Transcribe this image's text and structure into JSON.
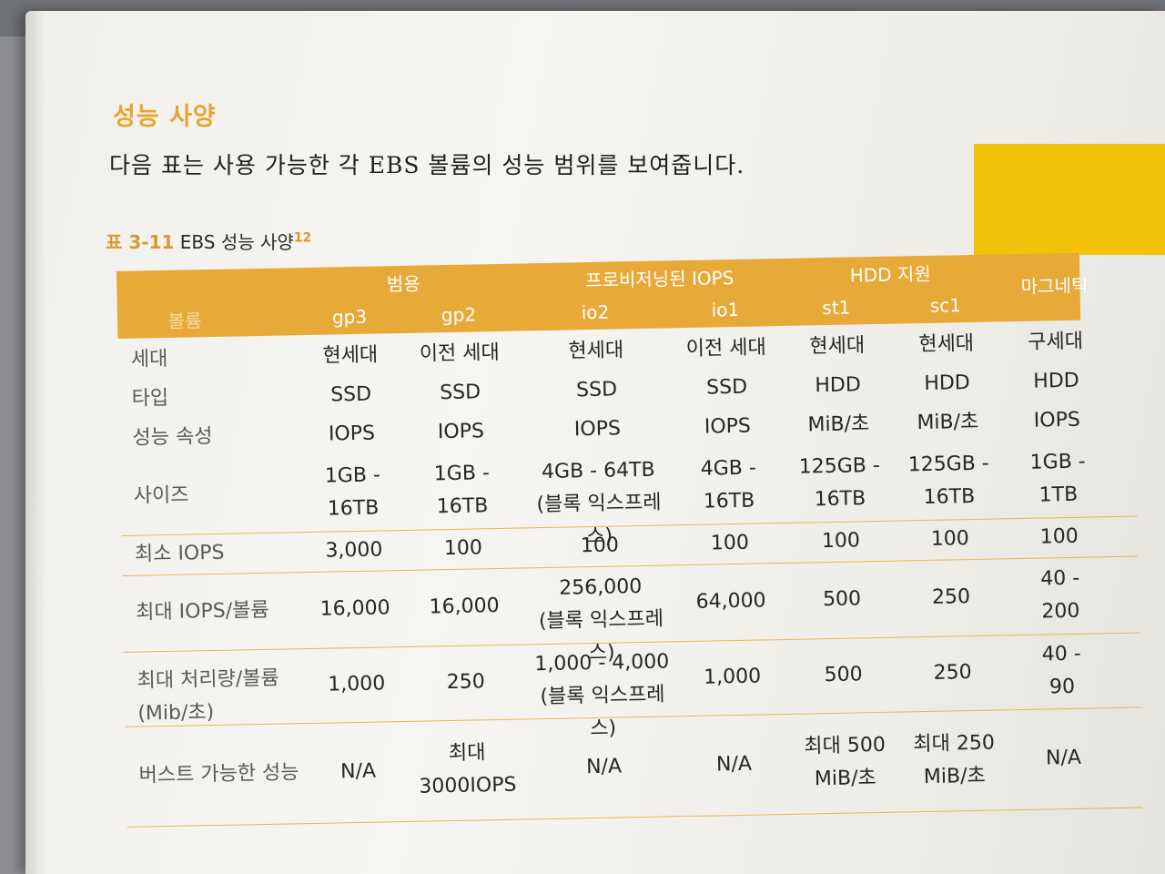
{
  "section_title": "성능 사양",
  "intro": "다음 표는 사용 가능한 각 EBS 볼륨의 성능 범위를 보여줍니다.",
  "caption": {
    "number": "표 3-11",
    "text": "EBS 성능 사양",
    "footnote": "12"
  },
  "table": {
    "groups": [
      "범용",
      "프로비저닝된 IOPS",
      "HDD 지원",
      "마그네틱"
    ],
    "row_header": "볼륨",
    "volumes": [
      "gp3",
      "gp2",
      "io2",
      "io1",
      "st1",
      "sc1"
    ],
    "rows": [
      {
        "label": "세대",
        "values": [
          "현세대",
          "이전 세대",
          "현세대",
          "이전 세대",
          "현세대",
          "현세대",
          "구세대"
        ]
      },
      {
        "label": "타입",
        "values": [
          "SSD",
          "SSD",
          "SSD",
          "SSD",
          "HDD",
          "HDD",
          "HDD"
        ]
      },
      {
        "label": "성능 속성",
        "values": [
          "IOPS",
          "IOPS",
          "IOPS",
          "IOPS",
          "MiB/초",
          "MiB/초",
          "IOPS"
        ]
      },
      {
        "label": "사이즈",
        "values": [
          [
            "1GB -",
            "16TB"
          ],
          [
            "1GB -",
            "16TB"
          ],
          [
            "4GB - 64TB",
            "(블록 익스프레스)"
          ],
          [
            "4GB -",
            "16TB"
          ],
          [
            "125GB -",
            "16TB"
          ],
          [
            "125GB -",
            "16TB"
          ],
          [
            "1GB -",
            "1TB"
          ]
        ]
      },
      {
        "label": "최소 IOPS",
        "values": [
          "3,000",
          "100",
          "100",
          "100",
          "100",
          "100",
          "100"
        ]
      },
      {
        "label": "최대 IOPS/볼륨",
        "values": [
          "16,000",
          "16,000",
          [
            "256,000",
            "(블록 익스프레스)"
          ],
          "64,000",
          "500",
          "250",
          [
            "40 -",
            "200"
          ]
        ]
      },
      {
        "label": [
          "최대 처리량/볼륨",
          "(Mib/초)"
        ],
        "values": [
          "1,000",
          "250",
          [
            "1,000 - 4,000",
            "(블록 익스프레스)"
          ],
          "1,000",
          "500",
          "250",
          [
            "40 -",
            "90"
          ]
        ]
      },
      {
        "label": "버스트 가능한 성능",
        "values": [
          "N/A",
          [
            "최대",
            "3000IOPS"
          ],
          "N/A",
          "N/A",
          [
            "최대 500",
            "MiB/초"
          ],
          [
            "최대 250",
            "MiB/초"
          ],
          "N/A"
        ]
      }
    ]
  }
}
